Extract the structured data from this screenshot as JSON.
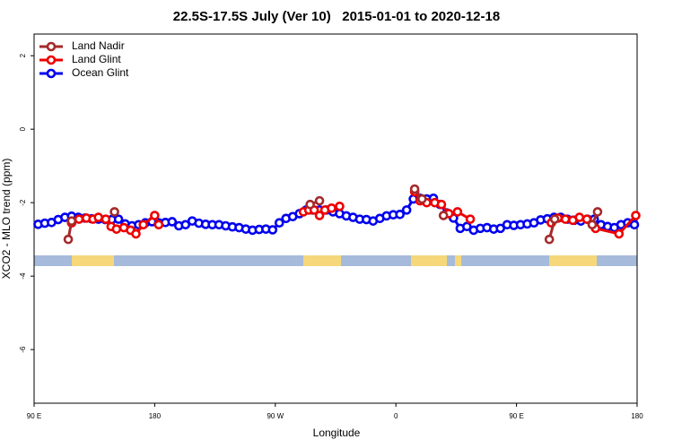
{
  "chart_data": {
    "type": "line",
    "title": "22.5S-17.5S July (Ver 10)   2015-01-01 to 2020-12-18",
    "x_label": "Longitude",
    "y_label": "XCO2 - MLO trend (ppm)",
    "xlim": [
      90,
      540
    ],
    "ylim": [
      -7.46,
      2.59
    ],
    "xticks": [
      {
        "value": 90,
        "label": "90 E"
      },
      {
        "value": 180,
        "label": "180"
      },
      {
        "value": 270,
        "label": "90 W"
      },
      {
        "value": 360,
        "label": "0"
      },
      {
        "value": 450,
        "label": "90 E"
      },
      {
        "value": 540,
        "label": "180"
      }
    ],
    "yticks": [
      2,
      0,
      -2,
      -4,
      -6
    ],
    "legend": "top-left",
    "series": [
      {
        "name": "Land Nadir",
        "color": "#a52a2a",
        "x": [
          115.5,
          118,
          134,
          150,
          220,
          296,
          303,
          340,
          374,
          379.5,
          390,
          395.5,
          440,
          474.5,
          478.5,
          490,
          506.5,
          510.5
        ],
        "values": [
          -3.0,
          -2.5,
          null,
          -2.25,
          null,
          -2.05,
          -1.95,
          null,
          -1.63,
          -1.9,
          null,
          -2.35,
          null,
          -3.0,
          -2.45,
          null,
          -2.6,
          -2.25
        ]
      },
      {
        "name": "Land Glint",
        "color": "#ee0000",
        "x": [
          118,
          123.5,
          129,
          134,
          138,
          143.5,
          147.5,
          151.5,
          157,
          162,
          166,
          171.5,
          180,
          183,
          240,
          291,
          295,
          299,
          303,
          307,
          312,
          318,
          350,
          374,
          378,
          383,
          389,
          394,
          399.5,
          406,
          415.5,
          450,
          476,
          481,
          486.5,
          492,
          497,
          502.5,
          509,
          526.5,
          539
        ],
        "values": [
          -2.55,
          -2.45,
          -2.42,
          -2.45,
          -2.4,
          -2.45,
          -2.65,
          -2.72,
          -2.68,
          -2.75,
          -2.85,
          -2.6,
          -2.35,
          -2.6,
          null,
          -2.25,
          -2.2,
          -2.2,
          -2.35,
          -2.2,
          -2.15,
          -2.1,
          null,
          -1.7,
          -1.95,
          -2.0,
          -2.0,
          -2.05,
          -2.3,
          -2.25,
          -2.45,
          null,
          -2.55,
          -2.42,
          -2.45,
          -2.48,
          -2.4,
          -2.45,
          -2.7,
          -2.85,
          -2.35
        ]
      },
      {
        "name": "Ocean Glint",
        "color": "#0000ee",
        "x": [
          93,
          98,
          103,
          108,
          113,
          118,
          123,
          128,
          133,
          138,
          143,
          148,
          153,
          158,
          163,
          168,
          173,
          178,
          183,
          188,
          193,
          198,
          203,
          208,
          213,
          218,
          223,
          228,
          233,
          238,
          243,
          248,
          253,
          258,
          263,
          268,
          273,
          278,
          283,
          288,
          293,
          298,
          303,
          308,
          313,
          318,
          323,
          328,
          333,
          338,
          343,
          348,
          353,
          358,
          363,
          368,
          373,
          378,
          383,
          388,
          393,
          398,
          403,
          408,
          413,
          418,
          423,
          428,
          433,
          438,
          443,
          448,
          453,
          458,
          463,
          468,
          473,
          478,
          483,
          488,
          493,
          498,
          503,
          508,
          513,
          518,
          523,
          528,
          533,
          538
        ],
        "values": [
          -2.59,
          -2.56,
          -2.54,
          -2.46,
          -2.4,
          -2.37,
          -2.4,
          -2.42,
          -2.44,
          -2.45,
          -2.46,
          -2.46,
          -2.45,
          -2.58,
          -2.63,
          -2.6,
          -2.55,
          -2.52,
          -2.55,
          -2.54,
          -2.52,
          -2.63,
          -2.6,
          -2.5,
          -2.56,
          -2.59,
          -2.6,
          -2.6,
          -2.63,
          -2.66,
          -2.68,
          -2.72,
          -2.75,
          -2.73,
          -2.72,
          -2.74,
          -2.55,
          -2.43,
          -2.38,
          -2.3,
          -2.2,
          -2.2,
          -2.2,
          -2.2,
          -2.25,
          -2.3,
          -2.36,
          -2.4,
          -2.45,
          -2.46,
          -2.5,
          -2.43,
          -2.36,
          -2.33,
          -2.32,
          -2.2,
          -1.9,
          -1.88,
          -1.9,
          -1.88,
          -2.05,
          -2.28,
          -2.42,
          -2.7,
          -2.65,
          -2.75,
          -2.7,
          -2.68,
          -2.72,
          -2.7,
          -2.6,
          -2.62,
          -2.6,
          -2.58,
          -2.55,
          -2.47,
          -2.44,
          -2.4,
          -2.4,
          -2.45,
          -2.48,
          -2.5,
          -2.45,
          -2.45,
          -2.6,
          -2.65,
          -2.68,
          -2.6,
          -2.55,
          -2.6
        ]
      }
    ]
  }
}
